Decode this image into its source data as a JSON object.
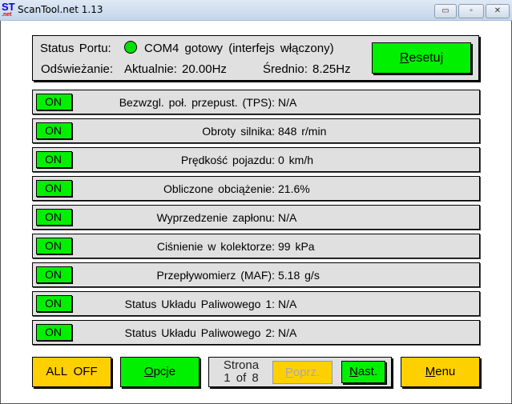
{
  "window": {
    "title": "ScanTool.net 1.13",
    "logo_top": "ST",
    "logo_bottom": ".net",
    "min": "▭",
    "max": "▫",
    "close": "✕"
  },
  "status": {
    "port_label": "Status Portu:",
    "port_value": "COM4 gotowy (interfejs włączony)",
    "led_color": "#00e000",
    "refresh_label": "Odświeżanie:",
    "current": "Aktualnie: 20.00Hz",
    "average": "Średnio: 8.25Hz",
    "reset_first": "R",
    "reset_rest": "esetuj"
  },
  "sensors": [
    {
      "toggle": "ON",
      "label": "Bezwzgl. poł. przepust. (TPS):",
      "value": "N/A"
    },
    {
      "toggle": "ON",
      "label": "Obroty silnika:",
      "value": "848 r/min"
    },
    {
      "toggle": "ON",
      "label": "Prędkość pojazdu:",
      "value": "0 km/h"
    },
    {
      "toggle": "ON",
      "label": "Obliczone obciążenie:",
      "value": "21.6%"
    },
    {
      "toggle": "ON",
      "label": "Wyprzedzenie zapłonu:",
      "value": "N/A"
    },
    {
      "toggle": "ON",
      "label": "Ciśnienie w kolektorze:",
      "value": "99 kPa"
    },
    {
      "toggle": "ON",
      "label": "Przepływomierz (MAF):",
      "value": "5.18 g/s"
    },
    {
      "toggle": "ON",
      "label": "Status Układu Paliwowego 1:",
      "value": "N/A"
    },
    {
      "toggle": "ON",
      "label": "Status Układu Paliwowego 2:",
      "value": "N/A"
    }
  ],
  "footer": {
    "all_off": "ALL OFF",
    "options_first": "O",
    "options_rest": "pcje",
    "page_label": "Strona",
    "page_value": "1 of 8",
    "prev_first": "P",
    "prev_rest": "oprz.",
    "next_first": "N",
    "next_rest": "ast.",
    "menu_first": "M",
    "menu_rest": "enu"
  }
}
